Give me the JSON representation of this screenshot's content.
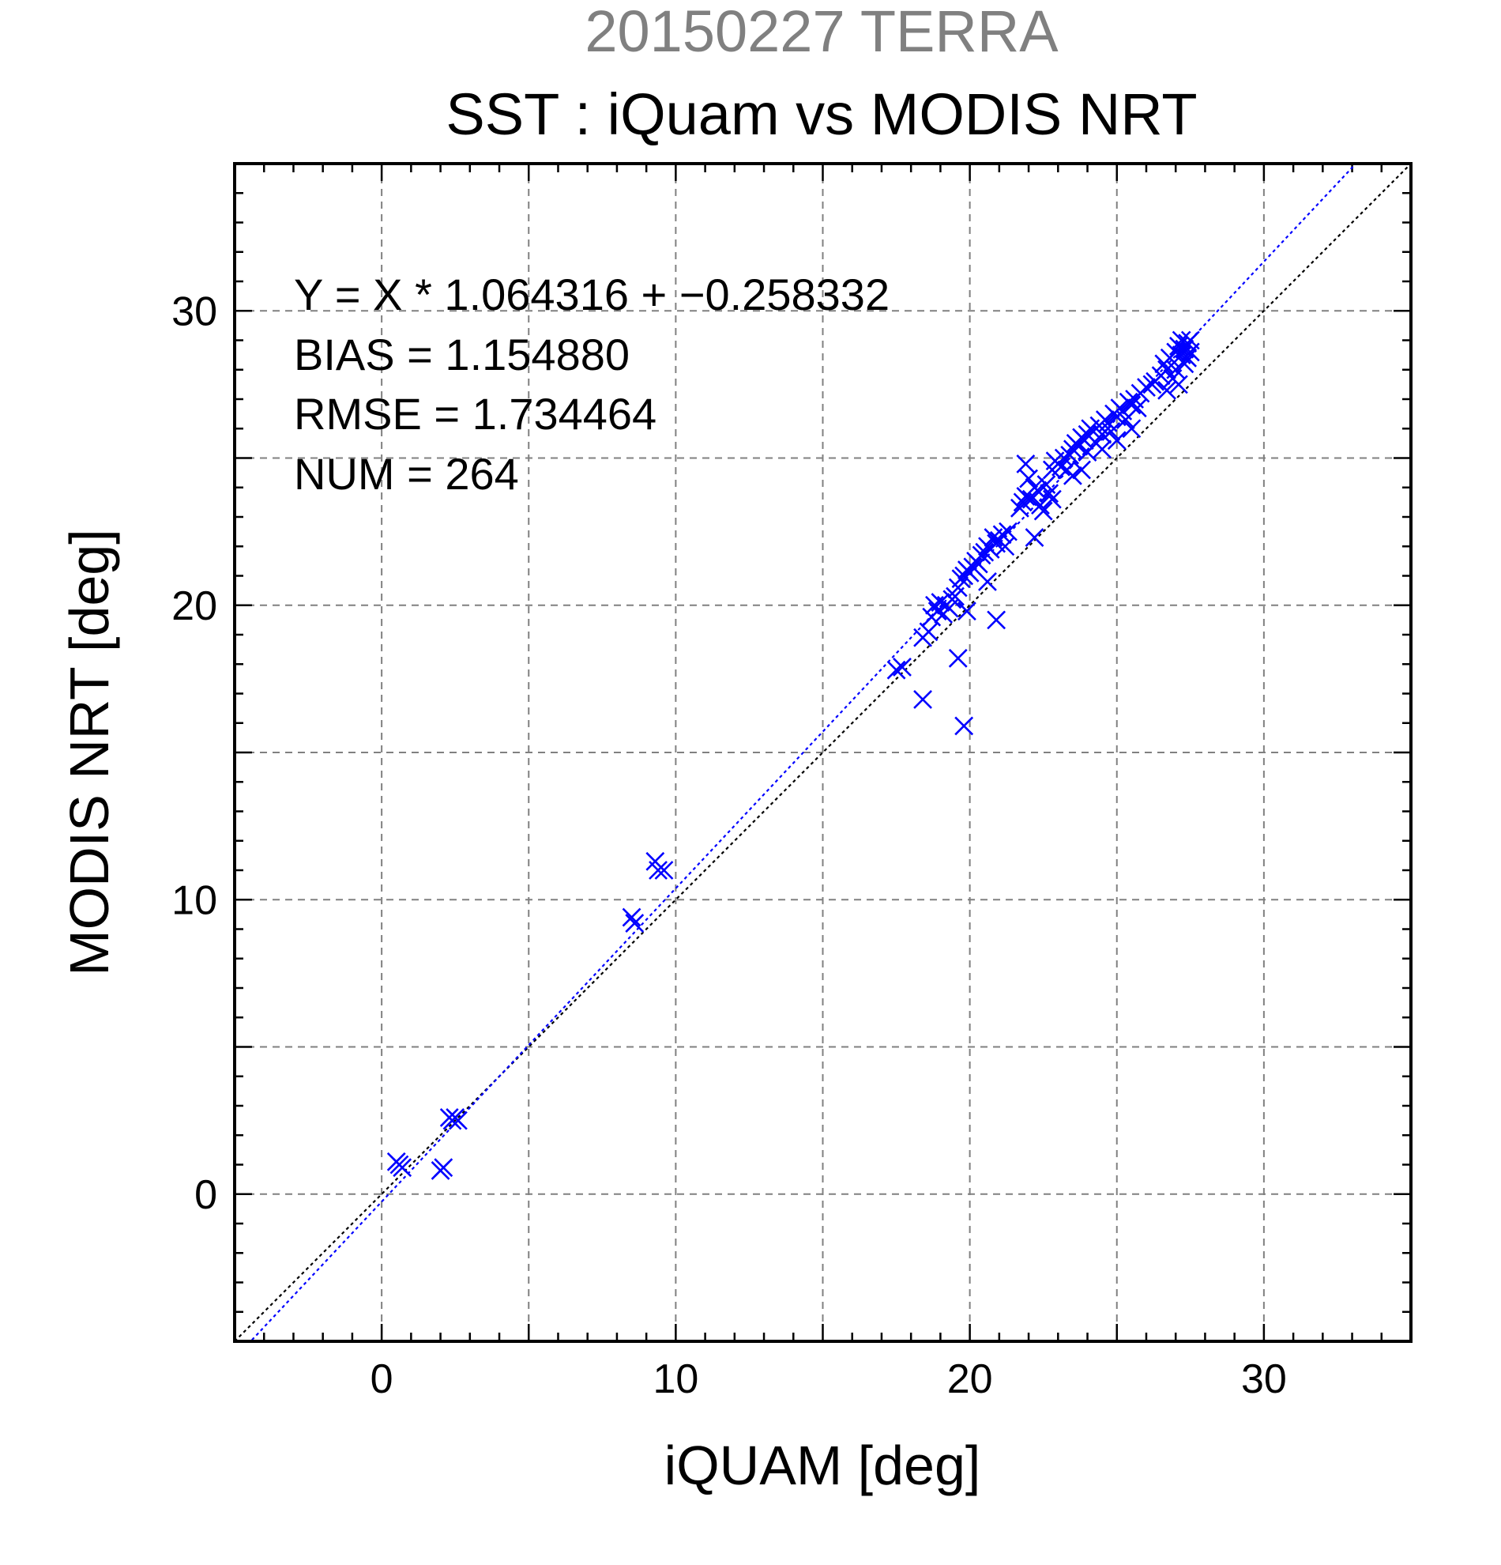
{
  "chart_data": {
    "type": "scatter",
    "supertitle": "20150227 TERRA",
    "title": "SST : iQuam vs MODIS NRT",
    "xlabel": "iQUAM [deg]",
    "ylabel": "MODIS NRT [deg]",
    "xlim": [
      -5,
      35
    ],
    "ylim": [
      -5,
      35
    ],
    "xticks": [
      0,
      10,
      20,
      30
    ],
    "yticks": [
      0,
      10,
      20,
      30
    ],
    "grid": true,
    "stats": [
      "Y = X * 1.064316 + −0.258332",
      "BIAS = 1.154880",
      "RMSE = 1.734464",
      "NUM = 264"
    ],
    "fit": {
      "slope": 1.064316,
      "intercept": -0.258332
    },
    "colors": {
      "points": "#0000ff",
      "fit_line": "#0000ff",
      "one_to_one_line": "#000000",
      "grid": "#808080"
    },
    "marker": "x",
    "points": [
      [
        0.5,
        1.1
      ],
      [
        0.6,
        1.0
      ],
      [
        0.7,
        0.9
      ],
      [
        2.0,
        0.8
      ],
      [
        2.1,
        0.9
      ],
      [
        2.3,
        2.6
      ],
      [
        2.4,
        2.5
      ],
      [
        2.5,
        2.6
      ],
      [
        2.6,
        2.5
      ],
      [
        8.5,
        9.4
      ],
      [
        8.6,
        9.2
      ],
      [
        9.3,
        11.3
      ],
      [
        9.4,
        11.0
      ],
      [
        9.6,
        11.0
      ],
      [
        17.5,
        17.8
      ],
      [
        17.7,
        17.9
      ],
      [
        18.4,
        16.8
      ],
      [
        18.4,
        18.9
      ],
      [
        18.6,
        19.1
      ],
      [
        18.7,
        19.6
      ],
      [
        18.8,
        20.0
      ],
      [
        18.9,
        19.8
      ],
      [
        19.0,
        20.1
      ],
      [
        19.1,
        19.7
      ],
      [
        19.2,
        20.0
      ],
      [
        19.3,
        19.9
      ],
      [
        19.4,
        20.2
      ],
      [
        19.5,
        20.3
      ],
      [
        19.6,
        20.6
      ],
      [
        19.6,
        18.2
      ],
      [
        19.7,
        20.9
      ],
      [
        19.8,
        21.0
      ],
      [
        19.8,
        15.9
      ],
      [
        19.9,
        21.2
      ],
      [
        19.9,
        19.8
      ],
      [
        20.0,
        21.1
      ],
      [
        20.1,
        21.3
      ],
      [
        20.2,
        21.5
      ],
      [
        20.3,
        21.4
      ],
      [
        20.4,
        21.7
      ],
      [
        20.5,
        21.8
      ],
      [
        20.6,
        22.0
      ],
      [
        20.6,
        20.8
      ],
      [
        20.7,
        21.9
      ],
      [
        20.8,
        22.3
      ],
      [
        20.9,
        19.5
      ],
      [
        20.9,
        22.1
      ],
      [
        21.0,
        22.2
      ],
      [
        21.1,
        22.4
      ],
      [
        21.2,
        22.0
      ],
      [
        21.3,
        22.5
      ],
      [
        21.7,
        23.3
      ],
      [
        21.8,
        23.5
      ],
      [
        21.9,
        24.8
      ],
      [
        21.9,
        23.7
      ],
      [
        22.0,
        24.3
      ],
      [
        22.1,
        23.6
      ],
      [
        22.2,
        24.0
      ],
      [
        22.2,
        22.3
      ],
      [
        22.3,
        23.9
      ],
      [
        22.4,
        23.4
      ],
      [
        22.5,
        23.2
      ],
      [
        22.6,
        24.1
      ],
      [
        22.7,
        23.8
      ],
      [
        22.8,
        23.6
      ],
      [
        22.8,
        24.6
      ],
      [
        22.9,
        24.9
      ],
      [
        23.0,
        24.8
      ],
      [
        23.1,
        24.7
      ],
      [
        23.2,
        25.0
      ],
      [
        23.3,
        24.6
      ],
      [
        23.4,
        25.1
      ],
      [
        23.5,
        25.3
      ],
      [
        23.5,
        24.4
      ],
      [
        23.6,
        25.5
      ],
      [
        23.7,
        25.4
      ],
      [
        23.8,
        25.7
      ],
      [
        23.8,
        24.6
      ],
      [
        23.9,
        25.6
      ],
      [
        24.0,
        25.8
      ],
      [
        24.0,
        25.2
      ],
      [
        24.1,
        26.0
      ],
      [
        24.2,
        25.9
      ],
      [
        24.3,
        25.5
      ],
      [
        24.4,
        26.1
      ],
      [
        24.5,
        25.8
      ],
      [
        24.5,
        25.3
      ],
      [
        24.6,
        26.3
      ],
      [
        24.7,
        26.2
      ],
      [
        24.8,
        25.9
      ],
      [
        24.9,
        26.5
      ],
      [
        25.0,
        26.4
      ],
      [
        25.0,
        25.6
      ],
      [
        25.1,
        26.7
      ],
      [
        25.2,
        26.6
      ],
      [
        25.3,
        26.3
      ],
      [
        25.4,
        26.9
      ],
      [
        25.5,
        26.8
      ],
      [
        25.5,
        26.0
      ],
      [
        25.6,
        27.0
      ],
      [
        25.7,
        26.7
      ],
      [
        25.8,
        27.2
      ],
      [
        26.0,
        27.4
      ],
      [
        26.2,
        27.5
      ],
      [
        26.3,
        27.6
      ],
      [
        26.5,
        27.8
      ],
      [
        26.6,
        28.2
      ],
      [
        26.7,
        27.3
      ],
      [
        26.7,
        28.0
      ],
      [
        26.8,
        28.4
      ],
      [
        26.9,
        27.7
      ],
      [
        27.0,
        28.6
      ],
      [
        27.0,
        28.0
      ],
      [
        27.1,
        28.8
      ],
      [
        27.1,
        27.5
      ],
      [
        27.2,
        28.5
      ],
      [
        27.2,
        29.0
      ],
      [
        27.3,
        28.7
      ],
      [
        27.3,
        28.2
      ],
      [
        27.4,
        28.9
      ],
      [
        27.4,
        28.4
      ],
      [
        27.5,
        29.0
      ],
      [
        27.5,
        28.6
      ]
    ]
  }
}
